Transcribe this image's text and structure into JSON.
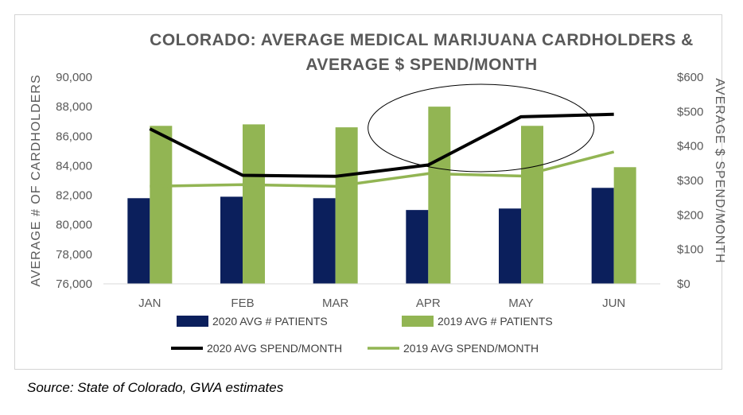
{
  "source": "Source: State of Colorado, GWA estimates",
  "chart_data": {
    "type": "bar",
    "title_line1": "COLORADO: AVERAGE MEDICAL MARIJUANA CARDHOLDERS &",
    "title_line2": "AVERAGE $ SPEND/MONTH",
    "categories": [
      "JAN",
      "FEB",
      "MAR",
      "APR",
      "MAY",
      "JUN"
    ],
    "ylabel_left": "AVERAGE # OF CARDHOLDERS",
    "ylabel_right": "AVERAGE $ SPEND/MONTH",
    "ylim_left": [
      76000,
      90000
    ],
    "ylim_right": [
      0,
      600
    ],
    "yticks_left": [
      "76,000",
      "78,000",
      "80,000",
      "82,000",
      "84,000",
      "86,000",
      "88,000",
      "90,000"
    ],
    "yticks_right": [
      "$0",
      "$100",
      "$200",
      "$300",
      "$400",
      "$500",
      "$600"
    ],
    "series": [
      {
        "name": "2020 AVG  # PATIENTS",
        "kind": "bar",
        "axis": "left",
        "color": "#0b1f5c",
        "values": [
          81800,
          81900,
          81800,
          81000,
          81100,
          82500
        ]
      },
      {
        "name": "2019 AVG  # PATIENTS",
        "kind": "bar",
        "axis": "left",
        "color": "#92b553",
        "values": [
          86700,
          86800,
          86600,
          88000,
          86700,
          83900
        ]
      },
      {
        "name": "2020 AVG SPEND/MONTH",
        "kind": "line",
        "axis": "right",
        "color": "#000000",
        "values": [
          450,
          315,
          312,
          345,
          485,
          492
        ]
      },
      {
        "name": "2019 AVG SPEND/MONTH",
        "kind": "line",
        "axis": "right",
        "color": "#92b553",
        "values": [
          283,
          288,
          283,
          320,
          313,
          383
        ]
      }
    ],
    "annotations": [
      {
        "shape": "ellipse",
        "highlights": [
          "APR",
          "MAY"
        ]
      }
    ],
    "grid": false,
    "legend": "bottom"
  }
}
